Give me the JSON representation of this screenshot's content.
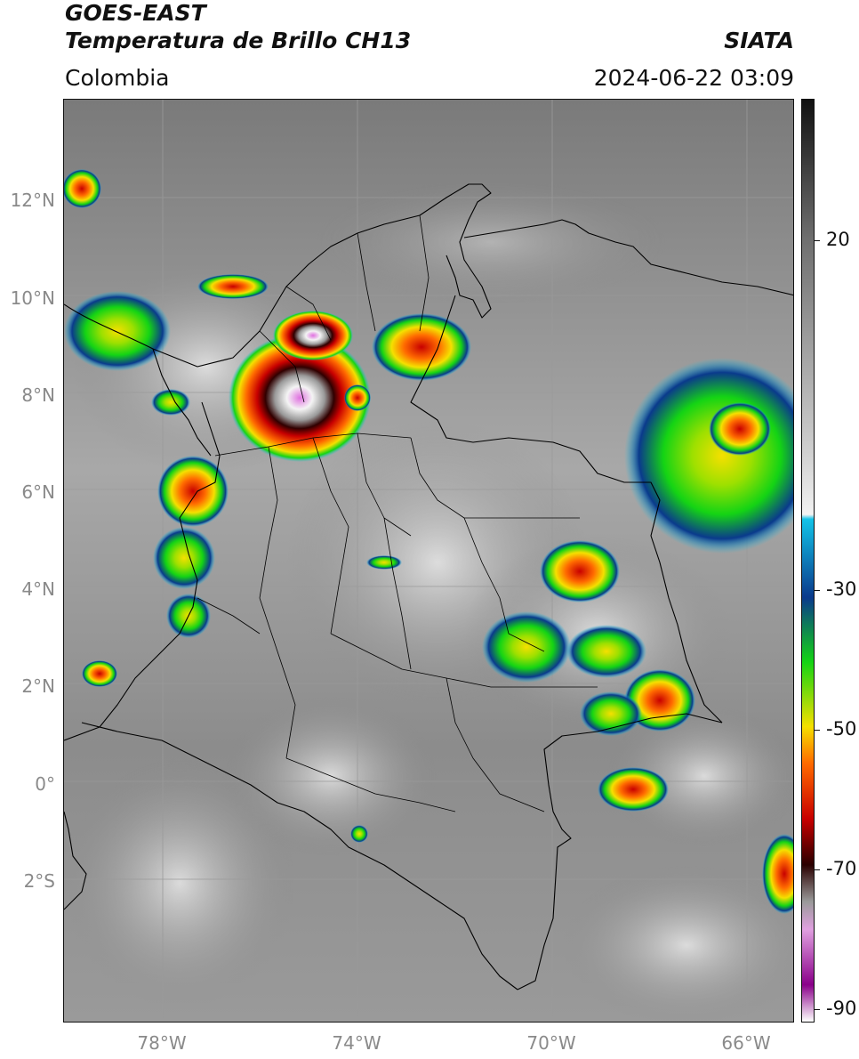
{
  "header": {
    "satellite": "GOES-EAST",
    "product": "Temperatura de Brillo CH13",
    "region": "Colombia",
    "org": "SIATA",
    "datetime": "2024-06-22 03:09"
  },
  "map": {
    "lat_labels": [
      "12°N",
      "10°N",
      "8°N",
      "6°N",
      "4°N",
      "2°N",
      "0°",
      "2°S"
    ],
    "lon_labels": [
      "78°W",
      "74°W",
      "70°W",
      "66°W"
    ],
    "gridline_color": "#9a9a9a",
    "border_color": "#000000"
  },
  "colorbar": {
    "labels": [
      "20",
      "-30",
      "-50",
      "-70",
      "-90"
    ],
    "stops": [
      "#111111",
      "#6e6e6e",
      "#cfcfcf",
      "#f2f2f2",
      "#12c3e8",
      "#0a3a8c",
      "#14d414",
      "#f5e000",
      "#ff6a00",
      "#c80000",
      "#2a0000",
      "#9a9a9a",
      "#e0a0e0",
      "#8a008a",
      "#ffffff"
    ]
  }
}
